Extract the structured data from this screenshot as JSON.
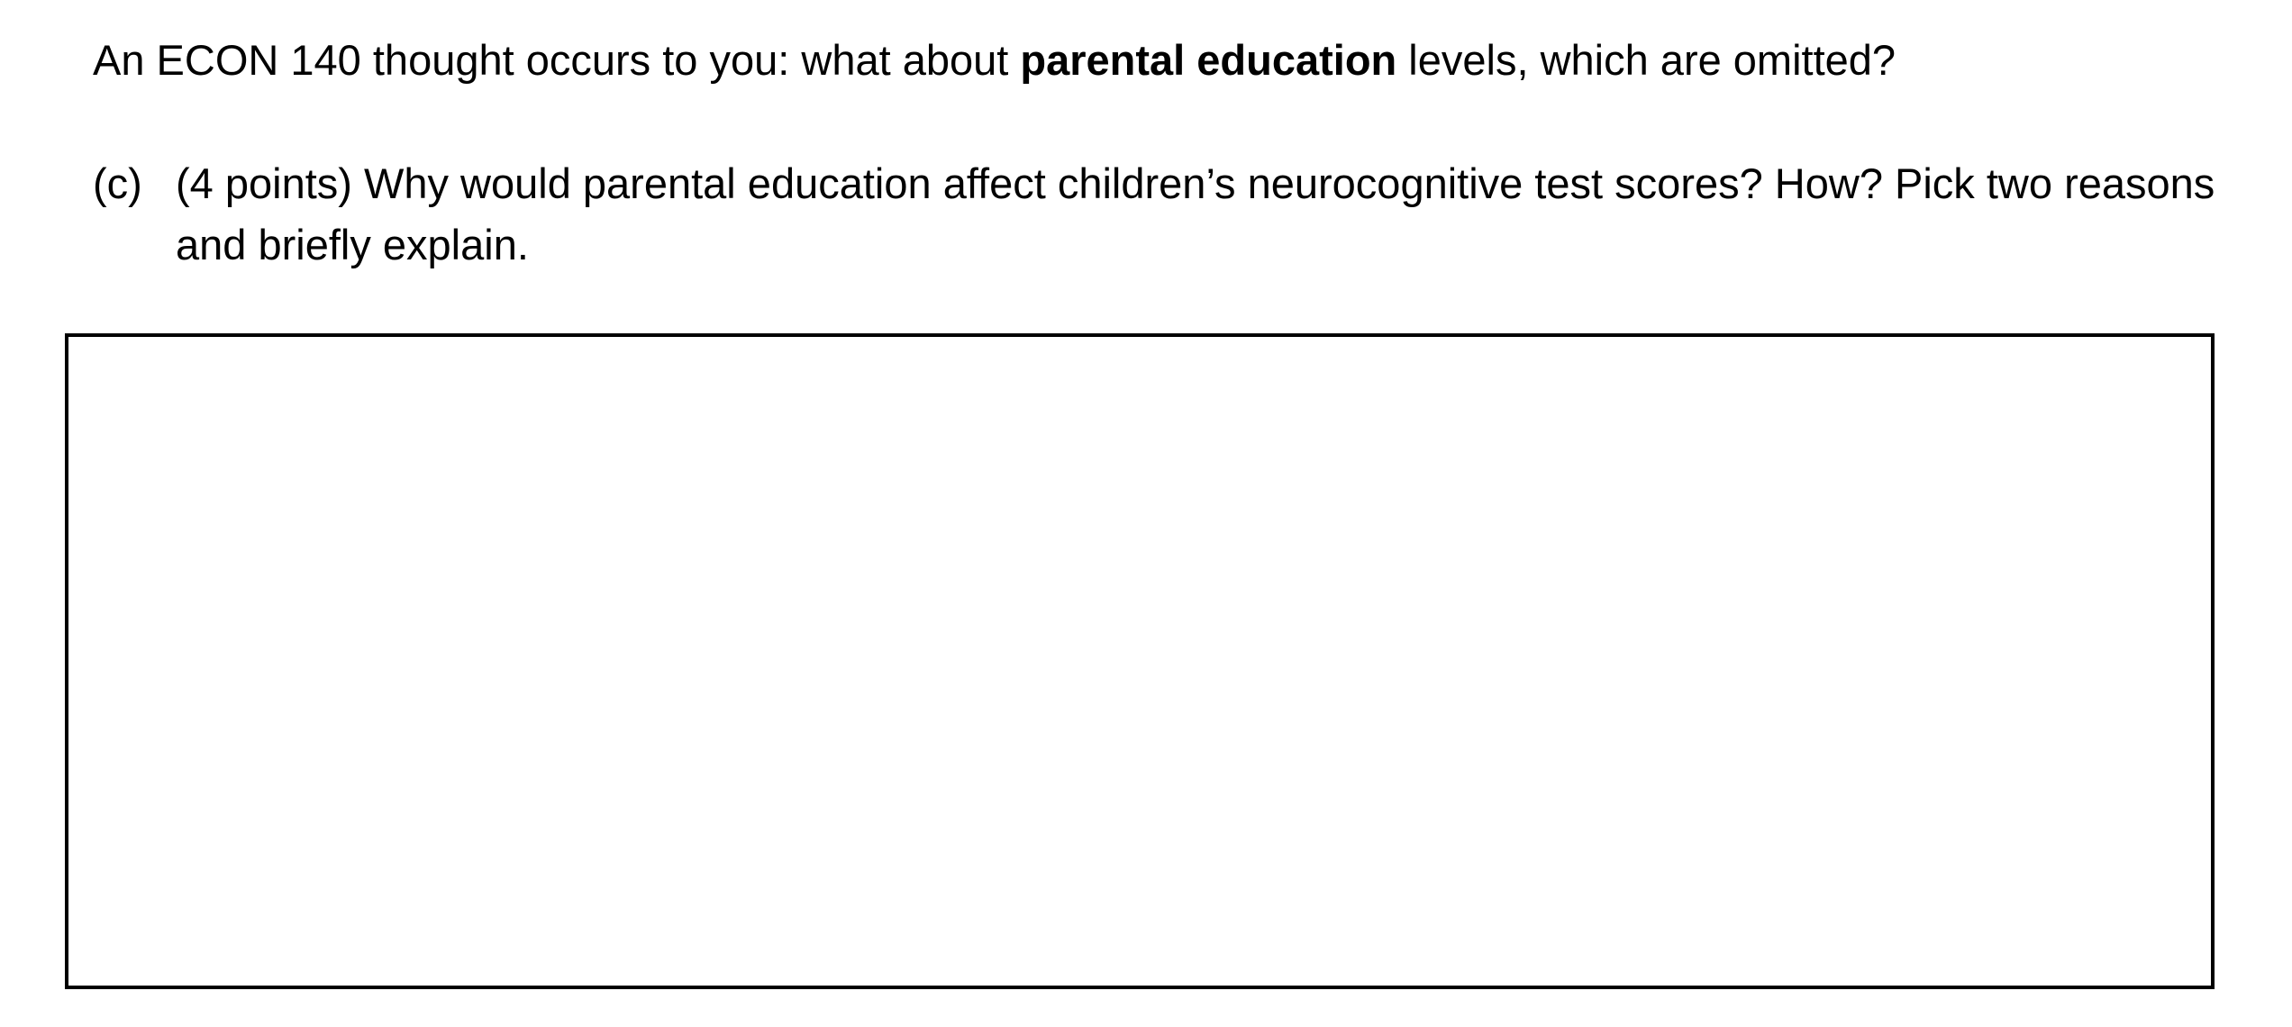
{
  "intro": {
    "before": "An ECON 140 thought occurs to you: what about ",
    "bold": "parental education",
    "after": " levels, which are omitted?"
  },
  "question": {
    "label": "(c)",
    "text": "(4 points) Why would parental education affect children’s neurocognitive test scores? How? Pick two reasons and briefly explain."
  },
  "answer_box": {
    "content": ""
  }
}
